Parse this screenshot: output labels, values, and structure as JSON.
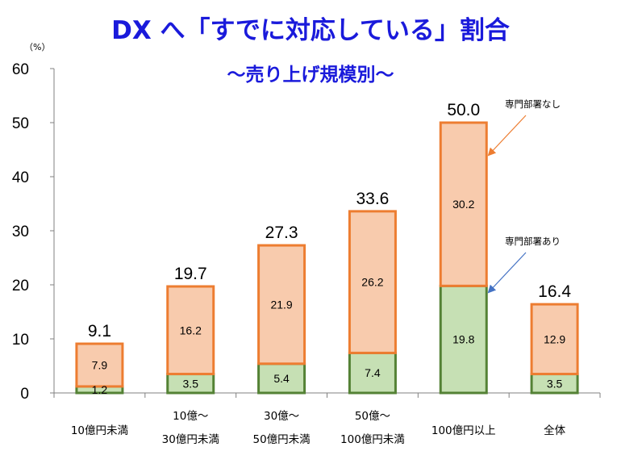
{
  "chart_data": {
    "type": "bar",
    "stacked": true,
    "title": "DX へ「すでに対応している」割合",
    "subtitle": "～売り上げ規模別～",
    "unit_label": "（%）",
    "ylim": [
      0,
      60
    ],
    "yticks": [
      0,
      10,
      20,
      30,
      40,
      50,
      60
    ],
    "categories": [
      [
        "10億円未満"
      ],
      [
        "10億～",
        "30億円未満"
      ],
      [
        "30億～",
        "50億円未満"
      ],
      [
        "50億～",
        "100億円未満"
      ],
      [
        "100億円以上"
      ],
      [
        "全体"
      ]
    ],
    "series": [
      {
        "name": "専門部署あり",
        "values": [
          1.2,
          3.5,
          5.4,
          7.4,
          19.8,
          3.5
        ],
        "fill": "#c6e0b4",
        "stroke": "#548235"
      },
      {
        "name": "専門部署なし",
        "values": [
          7.9,
          16.2,
          21.9,
          26.2,
          30.2,
          12.9
        ],
        "fill": "#f8cbad",
        "stroke": "#ed7d31"
      }
    ],
    "totals": [
      9.1,
      19.7,
      27.3,
      33.6,
      50.0,
      16.4
    ],
    "total_labels": [
      "9.1",
      "19.7",
      "27.3",
      "33.6",
      "50.0",
      "16.4"
    ],
    "segment_labels": [
      [
        "1.2",
        "3.5",
        "5.4",
        "7.4",
        "19.8",
        "3.5"
      ],
      [
        "7.9",
        "16.2",
        "21.9",
        "26.2",
        "30.2",
        "12.9"
      ]
    ],
    "annotations": [
      {
        "text": "専門部署なし",
        "color": "#ed7d31"
      },
      {
        "text": "専門部署あり",
        "color": "#4472c4"
      }
    ]
  }
}
